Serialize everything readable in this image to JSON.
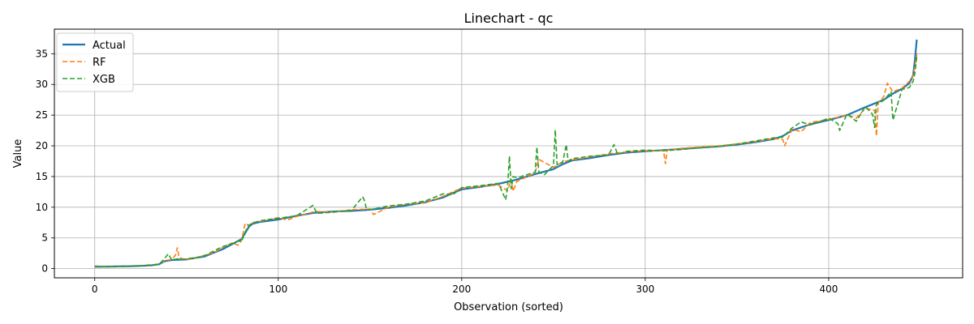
{
  "chart_data": {
    "type": "line",
    "title": "Linechart - qc",
    "xlabel": "Observation (sorted)",
    "ylabel": "Value",
    "xlim": [
      -22,
      473
    ],
    "ylim": [
      -1.5,
      39.0
    ],
    "xticks": [
      0,
      100,
      200,
      300,
      400
    ],
    "yticks": [
      0,
      5,
      10,
      15,
      20,
      25,
      30,
      35
    ],
    "grid": true,
    "legend_position": "top-left",
    "series": [
      {
        "name": "Actual",
        "color": "#1f77b4",
        "style": "solid",
        "x": [
          0,
          10,
          20,
          30,
          35,
          38,
          42,
          50,
          60,
          70,
          75,
          80,
          82,
          84,
          86,
          90,
          100,
          110,
          120,
          130,
          140,
          150,
          160,
          170,
          180,
          190,
          195,
          200,
          210,
          220,
          230,
          240,
          250,
          255,
          260,
          270,
          280,
          290,
          300,
          310,
          320,
          330,
          340,
          350,
          360,
          370,
          375,
          380,
          390,
          400,
          410,
          420,
          430,
          435,
          440,
          444,
          446,
          447,
          448
        ],
        "values": [
          0.3,
          0.35,
          0.4,
          0.5,
          0.7,
          1.2,
          1.4,
          1.5,
          2.0,
          3.2,
          4.0,
          4.8,
          5.8,
          6.8,
          7.3,
          7.6,
          8.0,
          8.6,
          9.1,
          9.3,
          9.4,
          9.6,
          9.9,
          10.3,
          10.8,
          11.6,
          12.3,
          12.9,
          13.3,
          13.8,
          14.5,
          15.4,
          16.2,
          17.0,
          17.6,
          18.0,
          18.5,
          18.9,
          19.1,
          19.3,
          19.5,
          19.7,
          19.9,
          20.2,
          20.6,
          21.1,
          21.6,
          22.5,
          23.5,
          24.2,
          25.0,
          26.3,
          27.5,
          28.5,
          29.3,
          30.2,
          31.5,
          34.0,
          37.3
        ]
      },
      {
        "name": "RF",
        "color": "#ff7f0e",
        "style": "dashed",
        "x": [
          0,
          10,
          20,
          30,
          35,
          38,
          42,
          44,
          45,
          46,
          48,
          50,
          55,
          60,
          65,
          70,
          75,
          78,
          80,
          82,
          84,
          86,
          90,
          100,
          105,
          110,
          120,
          130,
          140,
          150,
          152,
          160,
          170,
          180,
          190,
          195,
          200,
          210,
          220,
          225,
          227,
          228,
          230,
          240,
          242,
          250,
          255,
          260,
          270,
          280,
          290,
          300,
          310,
          311,
          312,
          320,
          330,
          340,
          350,
          360,
          370,
          375,
          376,
          380,
          385,
          390,
          400,
          410,
          415,
          420,
          425,
          426,
          427,
          430,
          432,
          435,
          440,
          444,
          446,
          447,
          448
        ],
        "values": [
          0.35,
          0.3,
          0.45,
          0.5,
          0.8,
          1.3,
          1.5,
          2.2,
          3.4,
          1.8,
          1.6,
          1.5,
          1.7,
          2.2,
          2.6,
          3.5,
          4.2,
          3.8,
          4.6,
          7.4,
          7.0,
          7.5,
          7.7,
          8.3,
          7.9,
          8.5,
          9.3,
          9.2,
          9.6,
          9.7,
          8.8,
          10.0,
          10.5,
          10.7,
          11.8,
          12.5,
          13.1,
          13.4,
          13.6,
          12.7,
          14.5,
          12.6,
          14.2,
          15.6,
          17.8,
          16.5,
          17.4,
          17.7,
          18.2,
          18.7,
          19.0,
          19.2,
          19.2,
          17.1,
          19.3,
          19.6,
          19.8,
          20.0,
          20.3,
          20.7,
          21.2,
          21.0,
          20.0,
          22.7,
          22.3,
          23.8,
          24.3,
          25.0,
          24.5,
          26.1,
          25.8,
          21.6,
          27.0,
          28.0,
          30.2,
          28.8,
          29.4,
          30.5,
          31.4,
          33.0,
          35.0
        ]
      },
      {
        "name": "XGB",
        "color": "#2ca02c",
        "style": "dashed",
        "x": [
          0,
          10,
          20,
          30,
          35,
          38,
          40,
          42,
          45,
          48,
          50,
          55,
          60,
          65,
          70,
          75,
          78,
          80,
          82,
          84,
          86,
          90,
          100,
          110,
          119,
          121,
          130,
          140,
          146,
          147,
          148,
          150,
          160,
          170,
          180,
          190,
          195,
          200,
          210,
          220,
          224,
          225,
          226,
          227,
          228,
          230,
          240,
          241,
          242,
          245,
          250,
          251,
          252,
          255,
          257,
          258,
          260,
          270,
          280,
          283,
          285,
          290,
          300,
          310,
          320,
          330,
          340,
          350,
          360,
          370,
          375,
          380,
          385,
          390,
          400,
          405,
          406,
          410,
          415,
          420,
          424,
          425,
          426,
          430,
          434,
          435,
          440,
          444,
          446,
          447,
          448
        ],
        "values": [
          0.4,
          0.35,
          0.4,
          0.6,
          0.7,
          1.6,
          2.4,
          1.4,
          1.6,
          1.5,
          1.6,
          1.8,
          2.1,
          2.9,
          3.6,
          4.1,
          4.5,
          4.4,
          6.0,
          7.1,
          7.4,
          7.8,
          8.2,
          8.6,
          10.3,
          9.0,
          9.2,
          9.5,
          11.7,
          11.1,
          9.8,
          9.6,
          10.2,
          10.5,
          11.0,
          12.2,
          12.0,
          13.2,
          13.5,
          13.9,
          11.2,
          13.5,
          18.3,
          13.0,
          15.0,
          14.8,
          15.7,
          19.8,
          15.8,
          15.3,
          16.8,
          22.6,
          16.9,
          17.3,
          20.2,
          17.5,
          17.9,
          18.3,
          18.5,
          20.2,
          18.6,
          19.1,
          19.3,
          19.2,
          19.4,
          19.7,
          19.9,
          20.3,
          20.8,
          21.3,
          21.4,
          22.9,
          23.9,
          23.4,
          24.5,
          23.6,
          22.5,
          25.2,
          24.0,
          26.4,
          25.1,
          23.0,
          26.8,
          27.4,
          28.8,
          24.2,
          29.2,
          29.5,
          30.5,
          31.8,
          34.5
        ]
      }
    ]
  }
}
